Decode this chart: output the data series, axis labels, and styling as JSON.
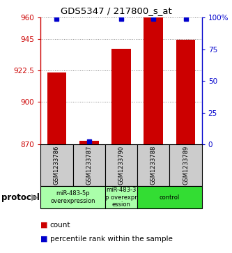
{
  "title": "GDS5347 / 217800_s_at",
  "samples": [
    "GSM1233786",
    "GSM1233787",
    "GSM1233790",
    "GSM1233788",
    "GSM1233789"
  ],
  "counts": [
    921.0,
    872.5,
    938.0,
    960.0,
    944.5
  ],
  "percentiles": [
    99,
    2,
    99,
    99,
    99
  ],
  "count_base": 870,
  "ylim_left": [
    870,
    960
  ],
  "ylim_right": [
    0,
    100
  ],
  "yticks_left": [
    870,
    900,
    922.5,
    945,
    960
  ],
  "yticks_right": [
    0,
    25,
    50,
    75,
    100
  ],
  "ytick_labels_left": [
    "870",
    "900",
    "922.5",
    "945",
    "960"
  ],
  "ytick_labels_right": [
    "0",
    "25",
    "50",
    "75",
    "100%"
  ],
  "bar_color": "#cc0000",
  "dot_color": "#0000cc",
  "protocol_groups": [
    {
      "label": "miR-483-5p\noverexpression",
      "samples": [
        0,
        1
      ],
      "color": "#aaffaa"
    },
    {
      "label": "miR-483-3\np overexpr\nession",
      "samples": [
        2
      ],
      "color": "#aaffaa"
    },
    {
      "label": "control",
      "samples": [
        3,
        4
      ],
      "color": "#33dd33"
    }
  ],
  "protocol_label": "protocol",
  "legend_count_label": "count",
  "legend_percentile_label": "percentile rank within the sample",
  "grid_color": "#888888",
  "background_color": "#ffffff",
  "sample_box_color": "#cccccc"
}
